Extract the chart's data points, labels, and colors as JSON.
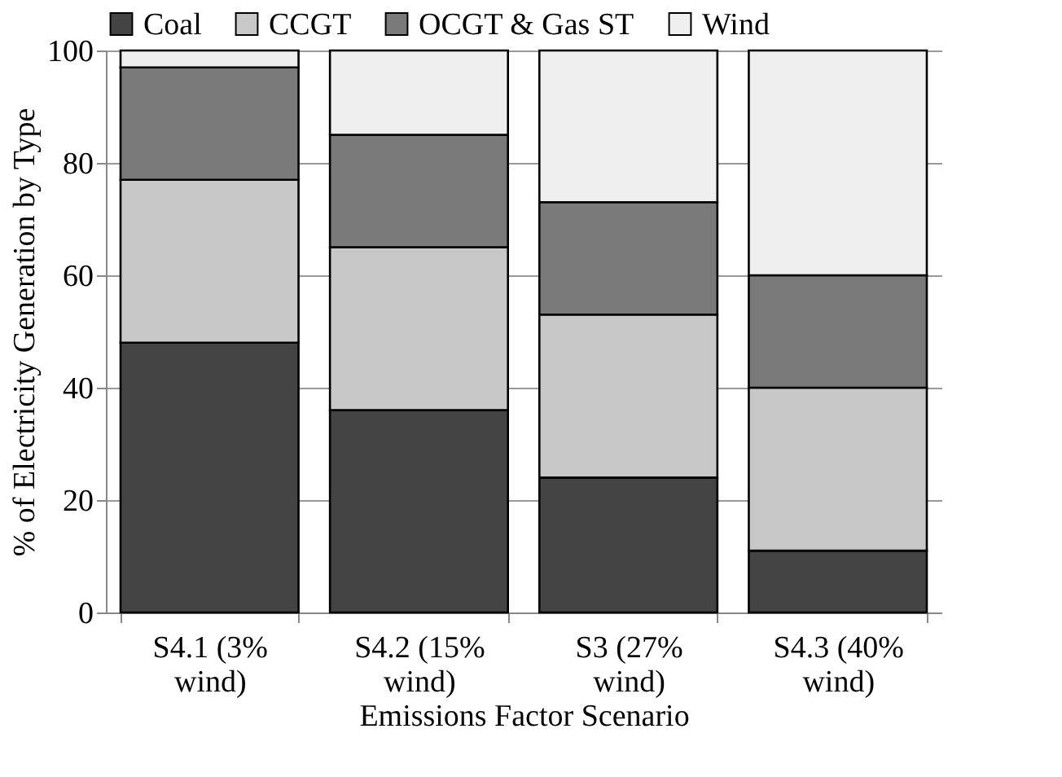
{
  "chart_data": {
    "type": "bar",
    "stacked": true,
    "xlabel": "Emissions Factor Scenario",
    "ylabel": "% of Electricity Generation by Type",
    "categories": [
      "S4.1 (3% wind)",
      "S4.2 (15% wind)",
      "S3 (27% wind)",
      "S4.3 (40% wind)"
    ],
    "series": [
      {
        "name": "Coal",
        "color": "#444444",
        "values": [
          48,
          36,
          24,
          11
        ]
      },
      {
        "name": "CCGT",
        "color": "#c8c8c8",
        "values": [
          29,
          29,
          29,
          29
        ]
      },
      {
        "name": "OCGT & Gas ST",
        "color": "#7a7a7a",
        "values": [
          20,
          20,
          20,
          20
        ]
      },
      {
        "name": "Wind",
        "color": "#efefef",
        "values": [
          3,
          15,
          27,
          40
        ]
      }
    ],
    "ylim": [
      0,
      100
    ],
    "yticks": [
      0,
      20,
      40,
      60,
      80,
      100
    ],
    "grid": "y",
    "legend": "top"
  }
}
